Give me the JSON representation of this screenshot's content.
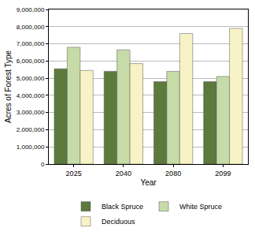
{
  "chart_data": {
    "type": "bar",
    "x_label": "Year",
    "y_label": "Acres of Forest Type",
    "categories": [
      "2025",
      "2040",
      "2080",
      "2099"
    ],
    "series": [
      {
        "name": "Black Spruce",
        "color": "#5b7a3c",
        "values": [
          5550000,
          5400000,
          4800000,
          4800000
        ]
      },
      {
        "name": "White Spruce",
        "color": "#c6dba8",
        "values": [
          6800000,
          6650000,
          5400000,
          5100000
        ]
      },
      {
        "name": "Deciduous",
        "color": "#f8f3c6",
        "values": [
          5450000,
          5850000,
          7600000,
          7900000
        ]
      }
    ],
    "ylim": [
      0,
      9000000
    ],
    "yticks": [
      0,
      {
        "value": 1000000,
        "label": "1,000,000"
      },
      {
        "value": 2000000,
        "label": "2,000,000"
      },
      {
        "value": 3000000,
        "label": "3,000,000"
      },
      {
        "value": 4000000,
        "label": "4,000,000"
      },
      {
        "value": 5000000,
        "label": "5,000,000"
      },
      {
        "value": 6000000,
        "label": "6,000,000"
      },
      {
        "value": 7000000,
        "label": "7,000,000"
      },
      {
        "value": 8000000,
        "label": "8,000,000"
      },
      {
        "value": 9000000,
        "label": "9,000,000"
      }
    ],
    "grid": true,
    "legend": "bottom"
  }
}
